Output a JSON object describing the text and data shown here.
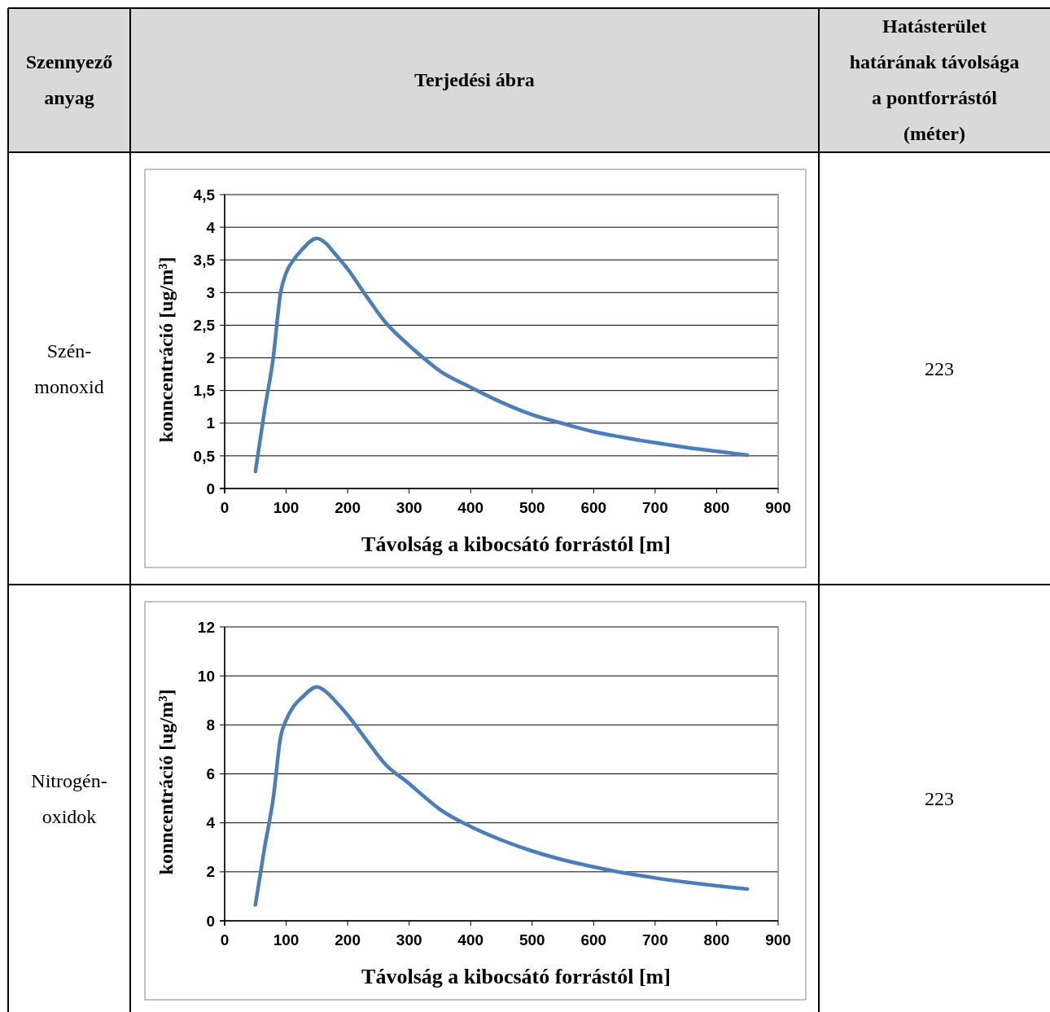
{
  "chart_data": [
    {
      "type": "line",
      "xlabel": "Távolság a kibocsátó forrástól [m]",
      "ylabel": "konncentráció [ug/m³]",
      "annotations": [
        "Szennyező anyag",
        "Terjedési ábra",
        "Hatásterület határának távolsága a pontforrástól (méter)",
        "Szén-monoxid",
        "223"
      ],
      "xlim": [
        0,
        900
      ],
      "xticks": [
        0,
        100,
        200,
        300,
        400,
        500,
        600,
        700,
        800,
        900
      ],
      "ylim": [
        0,
        4.5
      ],
      "yticks": [
        0,
        {
          "value": 0.5,
          "label": "0,5"
        },
        1,
        {
          "value": 1.5,
          "label": "1,5"
        },
        2,
        {
          "value": 2.5,
          "label": "2,5"
        },
        3,
        {
          "value": 3.5,
          "label": "3,5"
        },
        4,
        {
          "value": 4.5,
          "label": "4,5"
        }
      ],
      "grid": "y",
      "marker": "none",
      "line_style": "solid",
      "series": [
        {
          "color": "#4a7ebb",
          "x": [
            50,
            65,
            79,
            91,
            100,
            112,
            125,
            150,
            165,
            177,
            200,
            230,
            261,
            300,
            323,
            350,
            400,
            450,
            500,
            548,
            600,
            650,
            700,
            750,
            800,
            850
          ],
          "values": [
            0.26,
            1.2,
            2.0,
            3.0,
            3.3,
            3.5,
            3.65,
            3.83,
            3.75,
            3.62,
            3.36,
            2.95,
            2.55,
            2.19,
            2.0,
            1.8,
            1.55,
            1.32,
            1.13,
            1.0,
            0.87,
            0.78,
            0.7,
            0.63,
            0.57,
            0.51
          ]
        }
      ]
    },
    {
      "type": "line",
      "xlabel": "Távolság a kibocsátó forrástól [m]",
      "ylabel": "konncentráció [ug/m³]",
      "annotations": [
        "Nitrogén-oxidok",
        "223"
      ],
      "xlim": [
        0,
        900
      ],
      "xticks": [
        0,
        100,
        200,
        300,
        400,
        500,
        600,
        700,
        800,
        900
      ],
      "ylim": [
        0,
        12
      ],
      "yticks": [
        0,
        2,
        4,
        6,
        8,
        10,
        12
      ],
      "grid": "y",
      "marker": "none",
      "line_style": "solid",
      "series": [
        {
          "color": "#4a7ebb",
          "x": [
            50,
            65,
            79,
            91,
            100,
            112,
            125,
            150,
            165,
            177,
            200,
            230,
            261,
            300,
            323,
            350,
            400,
            450,
            500,
            548,
            600,
            650,
            700,
            750,
            800,
            850
          ],
          "values": [
            0.65,
            3.0,
            5.0,
            7.5,
            8.2,
            8.75,
            9.1,
            9.55,
            9.35,
            9.05,
            8.4,
            7.4,
            6.4,
            5.6,
            5.1,
            4.55,
            3.85,
            3.3,
            2.85,
            2.5,
            2.2,
            1.95,
            1.75,
            1.58,
            1.43,
            1.3
          ]
        }
      ]
    }
  ]
}
